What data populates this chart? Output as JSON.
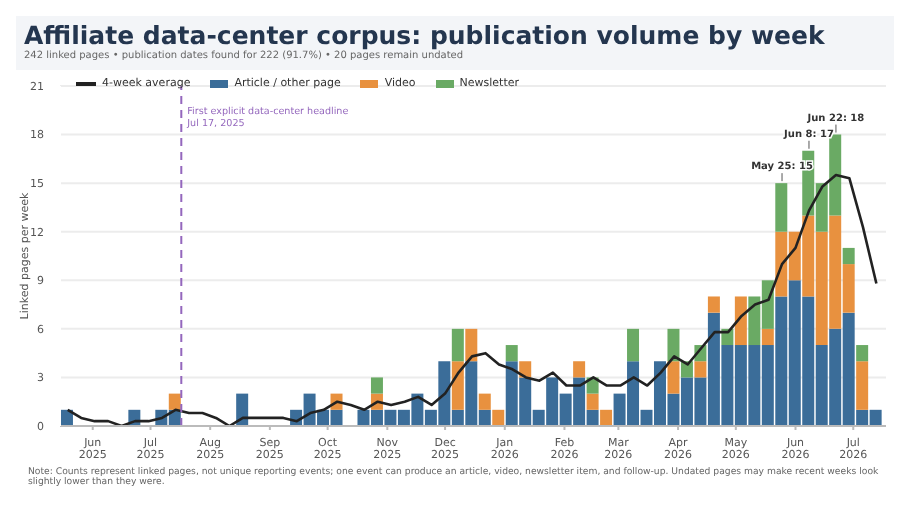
{
  "chart_data": {
    "type": "bar",
    "title": "Affiliate data-center corpus: publication volume by week",
    "subtitle": "242 linked pages • publication dates found for 222 (91.7%) • 20 pages remain undated",
    "ylabel": "Linked pages per week",
    "stacked": true,
    "grid": "y",
    "legend": "top left",
    "x": [
      "2025-05-19",
      "2025-05-26",
      "2025-06-02",
      "2025-06-09",
      "2025-06-16",
      "2025-06-23",
      "2025-06-30",
      "2025-07-07",
      "2025-07-14",
      "2025-07-21",
      "2025-07-28",
      "2025-08-04",
      "2025-08-11",
      "2025-08-18",
      "2025-08-25",
      "2025-09-01",
      "2025-09-08",
      "2025-09-15",
      "2025-09-22",
      "2025-09-29",
      "2025-10-06",
      "2025-10-13",
      "2025-10-20",
      "2025-10-27",
      "2025-11-03",
      "2025-11-10",
      "2025-11-17",
      "2025-11-24",
      "2025-12-01",
      "2025-12-08",
      "2025-12-15",
      "2025-12-22",
      "2025-12-29",
      "2026-01-05",
      "2026-01-12",
      "2026-01-19",
      "2026-01-26",
      "2026-02-02",
      "2026-02-09",
      "2026-02-16",
      "2026-02-23",
      "2026-03-02",
      "2026-03-09",
      "2026-03-16",
      "2026-03-23",
      "2026-03-30",
      "2026-04-06",
      "2026-04-13",
      "2026-04-20",
      "2026-04-27",
      "2026-05-04",
      "2026-05-11",
      "2026-05-18",
      "2026-05-25",
      "2026-06-01",
      "2026-06-08",
      "2026-06-15",
      "2026-06-22",
      "2026-06-29",
      "2026-07-06",
      "2026-07-13"
    ],
    "series": [
      {
        "name": "4-week average",
        "type": "line",
        "color": "#222222",
        "marker": "none",
        "line_style": "solid",
        "values": [
          1,
          0.5,
          0.3,
          0.3,
          0,
          0.3,
          0.3,
          0.5,
          1,
          0.8,
          0.8,
          0.5,
          0,
          0.5,
          0.5,
          0.5,
          0.5,
          0.3,
          0.8,
          1,
          1.5,
          1.3,
          1,
          1.5,
          1.3,
          1.5,
          1.8,
          1.3,
          2,
          3.3,
          4.3,
          4.5,
          3.8,
          3.5,
          3,
          2.8,
          3.3,
          2.5,
          2.5,
          3,
          2.5,
          2.5,
          3,
          2.5,
          3.3,
          4.3,
          3.8,
          4.8,
          5.8,
          5.8,
          6.8,
          7.5,
          7.8,
          10,
          11,
          13.3,
          14.8,
          15.5,
          15.3,
          12.3,
          8.8
        ]
      },
      {
        "name": "Article / other page",
        "color": "#3b6d99",
        "values": [
          1,
          0,
          0,
          0,
          0,
          1,
          0,
          1,
          1,
          0,
          0,
          0,
          0,
          2,
          0,
          0,
          0,
          1,
          2,
          1,
          1,
          0,
          1,
          1,
          1,
          1,
          2,
          1,
          4,
          1,
          4,
          1,
          0,
          4,
          3,
          1,
          3,
          2,
          3,
          1,
          0,
          2,
          4,
          1,
          4,
          2,
          3,
          3,
          7,
          5,
          5,
          5,
          5,
          8,
          9,
          8,
          5,
          6,
          7,
          1,
          1
        ]
      },
      {
        "name": "Video",
        "color": "#e8913f",
        "values": [
          0,
          0,
          0,
          0,
          0,
          0,
          0,
          0,
          1,
          0,
          0,
          0,
          0,
          0,
          0,
          0,
          0,
          0,
          0,
          0,
          1,
          0,
          0,
          1,
          0,
          0,
          0,
          0,
          0,
          3,
          2,
          1,
          1,
          0,
          1,
          0,
          0,
          0,
          1,
          1,
          1,
          0,
          0,
          0,
          0,
          2,
          0,
          1,
          1,
          0,
          3,
          0,
          1,
          4,
          3,
          5,
          7,
          7,
          3,
          3,
          0
        ]
      },
      {
        "name": "Newsletter",
        "color": "#6aaa64",
        "values": [
          0,
          0,
          0,
          0,
          0,
          0,
          0,
          0,
          0,
          0,
          0,
          0,
          0,
          0,
          0,
          0,
          0,
          0,
          0,
          0,
          0,
          0,
          0,
          1,
          0,
          0,
          0,
          0,
          0,
          2,
          0,
          0,
          0,
          1,
          0,
          0,
          0,
          0,
          0,
          1,
          0,
          0,
          2,
          0,
          0,
          2,
          1,
          1,
          0,
          1,
          0,
          3,
          3,
          3,
          0,
          4,
          3,
          5,
          1,
          1,
          0
        ]
      }
    ],
    "xlim": [
      "2025-05-15",
      "2026-07-18"
    ],
    "xticks": [
      {
        "value": "2025-06-01",
        "label": "Jun 2025"
      },
      {
        "value": "2025-07-01",
        "label": "Jul 2025"
      },
      {
        "value": "2025-08-01",
        "label": "Aug 2025"
      },
      {
        "value": "2025-09-01",
        "label": "Sep 2025"
      },
      {
        "value": "2025-10-01",
        "label": "Oct 2025"
      },
      {
        "value": "2025-11-01",
        "label": "Nov 2025"
      },
      {
        "value": "2025-12-01",
        "label": "Dec 2025"
      },
      {
        "value": "2026-01-01",
        "label": "Jan 2026"
      },
      {
        "value": "2026-02-01",
        "label": "Feb 2026"
      },
      {
        "value": "2026-03-01",
        "label": "Mar 2026"
      },
      {
        "value": "2026-04-01",
        "label": "Apr 2026"
      },
      {
        "value": "2026-05-01",
        "label": "May 2026"
      },
      {
        "value": "2026-06-01",
        "label": "Jun 2026"
      },
      {
        "value": "2026-07-01",
        "label": "Jul 2026"
      }
    ],
    "ylim": [
      0,
      21
    ],
    "yticks": [
      0,
      3,
      6,
      9,
      12,
      15,
      18,
      21
    ],
    "ref_lines": [
      {
        "axis": "x",
        "value": "2025-07-17",
        "label": "First explicit data-center headline\nJul 17, 2025",
        "color": "#9467bd",
        "line_style": "dashed"
      }
    ],
    "annotations": [
      {
        "text": "May 25: 15",
        "x": "2026-05-25",
        "y": 15
      },
      {
        "text": "Jun 8: 17",
        "x": "2026-06-08",
        "y": 17
      },
      {
        "text": "Jun 22: 18",
        "x": "2026-06-22",
        "y": 18
      },
      "Note: Counts represent linked pages, not unique reporting events; one event can produce an article, video, newsletter item, and follow-up. Undated pages may make recent weeks look slightly lower than they were."
    ]
  }
}
